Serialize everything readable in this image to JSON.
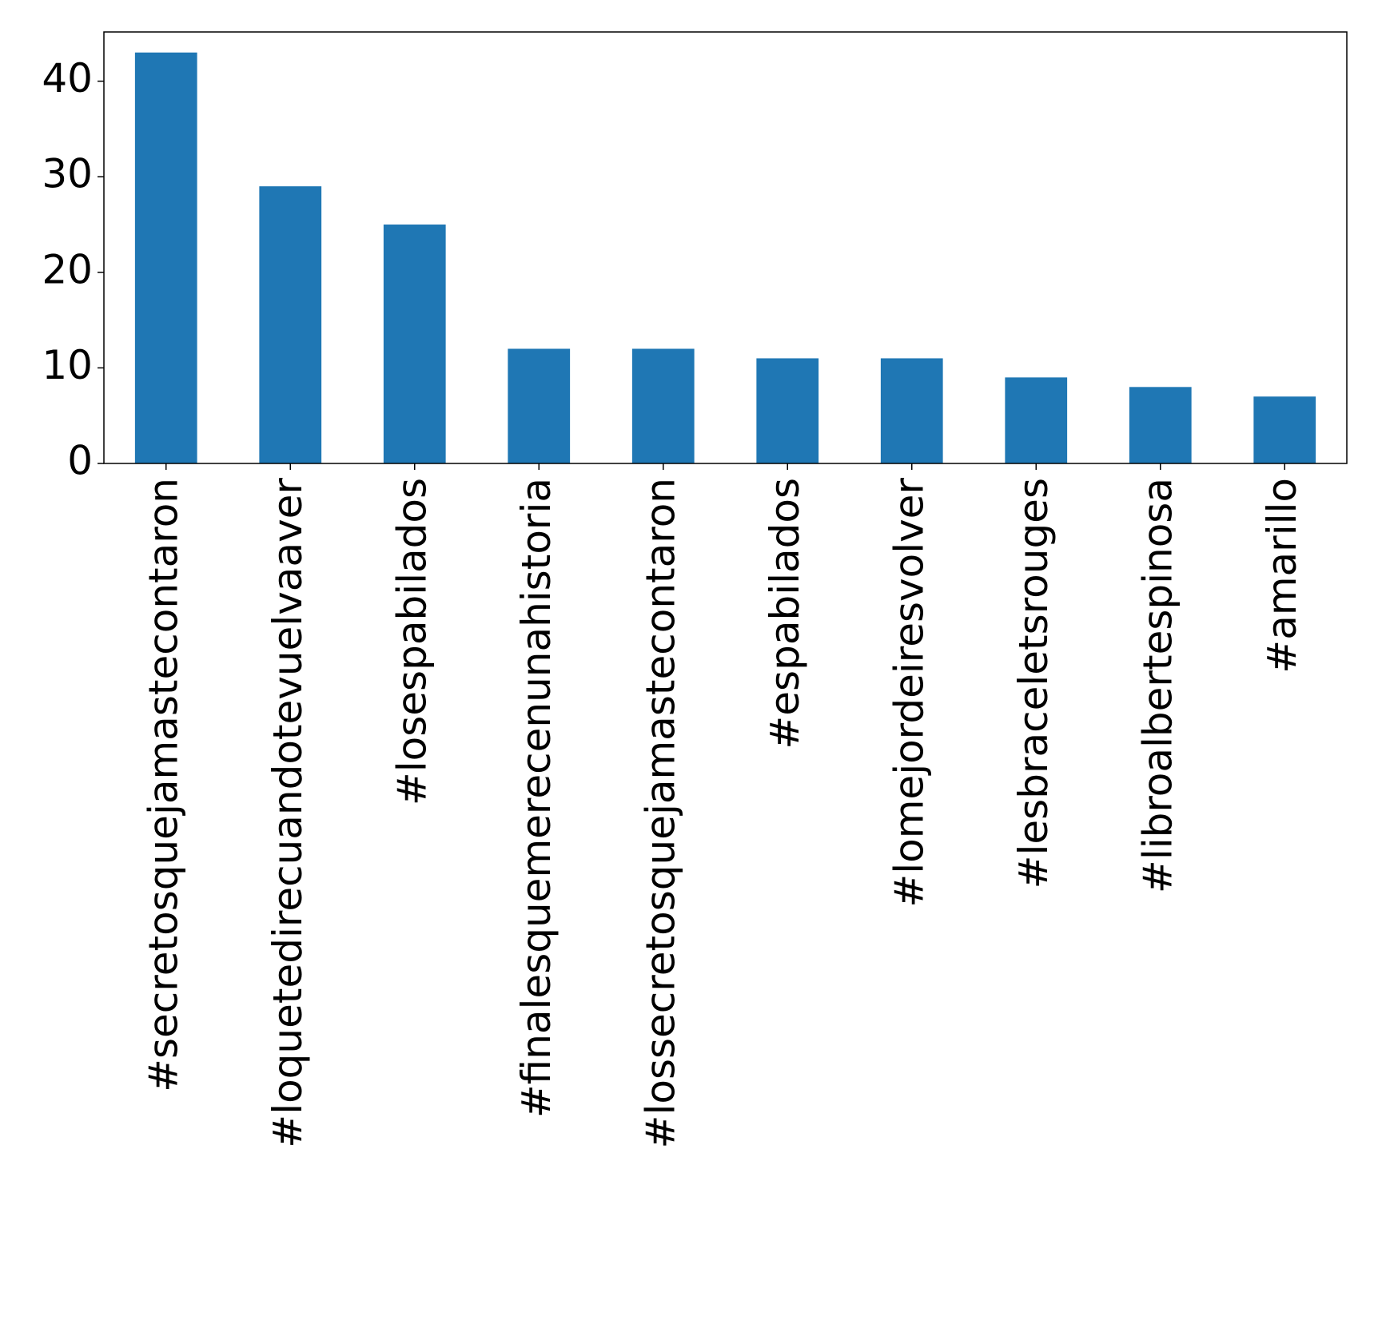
{
  "chart_data": {
    "type": "bar",
    "categories": [
      "#secretosquejamastecontaron",
      "#loquetedirecuandotevuelvaaver",
      "#losespabilados",
      "#finalesquemerecenunahistoria",
      "#lossecretosquejamastecontaron",
      "#espabilados",
      "#lomejordeiresvolver",
      "#lesbraceletsrouges",
      "#libroalbertespinosa",
      "#amarillo"
    ],
    "values": [
      43,
      29,
      25,
      12,
      12,
      11,
      11,
      9,
      8,
      7
    ],
    "yticks": [
      0,
      10,
      20,
      30,
      40
    ],
    "ylim": [
      0,
      45.15
    ],
    "title": "",
    "xlabel": "",
    "ylabel": "",
    "grid": false,
    "bar_color": "#1f77b4"
  }
}
